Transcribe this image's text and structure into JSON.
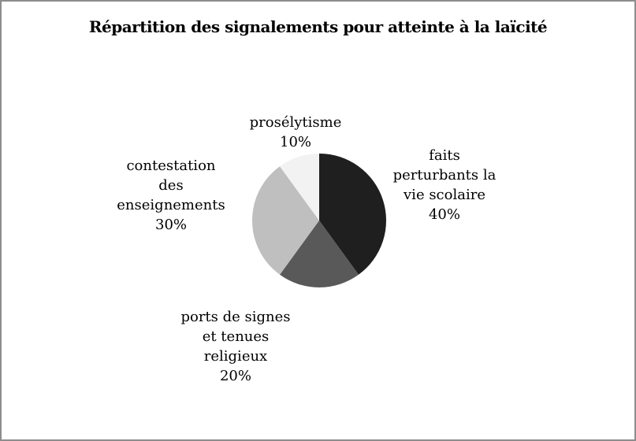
{
  "title": "Répartition des signalements pour atteinte à la laïcité",
  "frame": {
    "border_color": "#8d8d8d",
    "background": "#ffffff"
  },
  "chart_data": {
    "type": "pie",
    "title": "Répartition des signalements pour atteinte à la laïcité",
    "categories": [
      "faits perturbants la vie scolaire",
      "ports de signes et tenues religieux",
      "contestation des enseignements",
      "prosélytisme"
    ],
    "values": [
      40,
      20,
      30,
      10
    ],
    "unit": "%",
    "start_angle": "12 o'clock",
    "direction": "clockwise",
    "colors": [
      "#1f1f1f",
      "#595959",
      "#bfbfbf",
      "#f2f2f2"
    ],
    "legend_position": "none",
    "labels": {
      "faits": "faits\nperturbants la\nvie scolaire\n40%",
      "ports": "ports de signes\net tenues\nreligieux\n20%",
      "contestation": "contestation\ndes\nenseignements\n30%",
      "proselytisme": "prosélytisme\n10%"
    }
  }
}
